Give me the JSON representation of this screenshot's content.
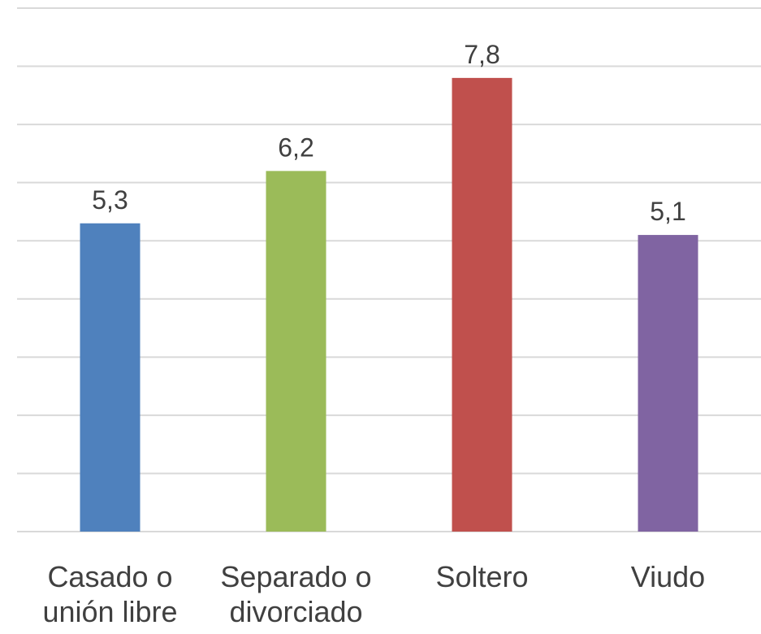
{
  "chart_data": {
    "type": "bar",
    "categories": [
      "Casado o unión libre",
      "Separado o divorciado",
      "Soltero",
      "Viudo"
    ],
    "values": [
      5.3,
      6.2,
      7.8,
      5.1
    ],
    "value_labels": [
      "5,3",
      "6,2",
      "7,8",
      "5,1"
    ],
    "colors": [
      "#4f81bd",
      "#9bbb59",
      "#c0504d",
      "#8064a2"
    ],
    "ylim": [
      0,
      9
    ],
    "yticks": [
      0,
      1,
      2,
      3,
      4,
      5,
      6,
      7,
      8,
      9
    ],
    "grid": true
  }
}
